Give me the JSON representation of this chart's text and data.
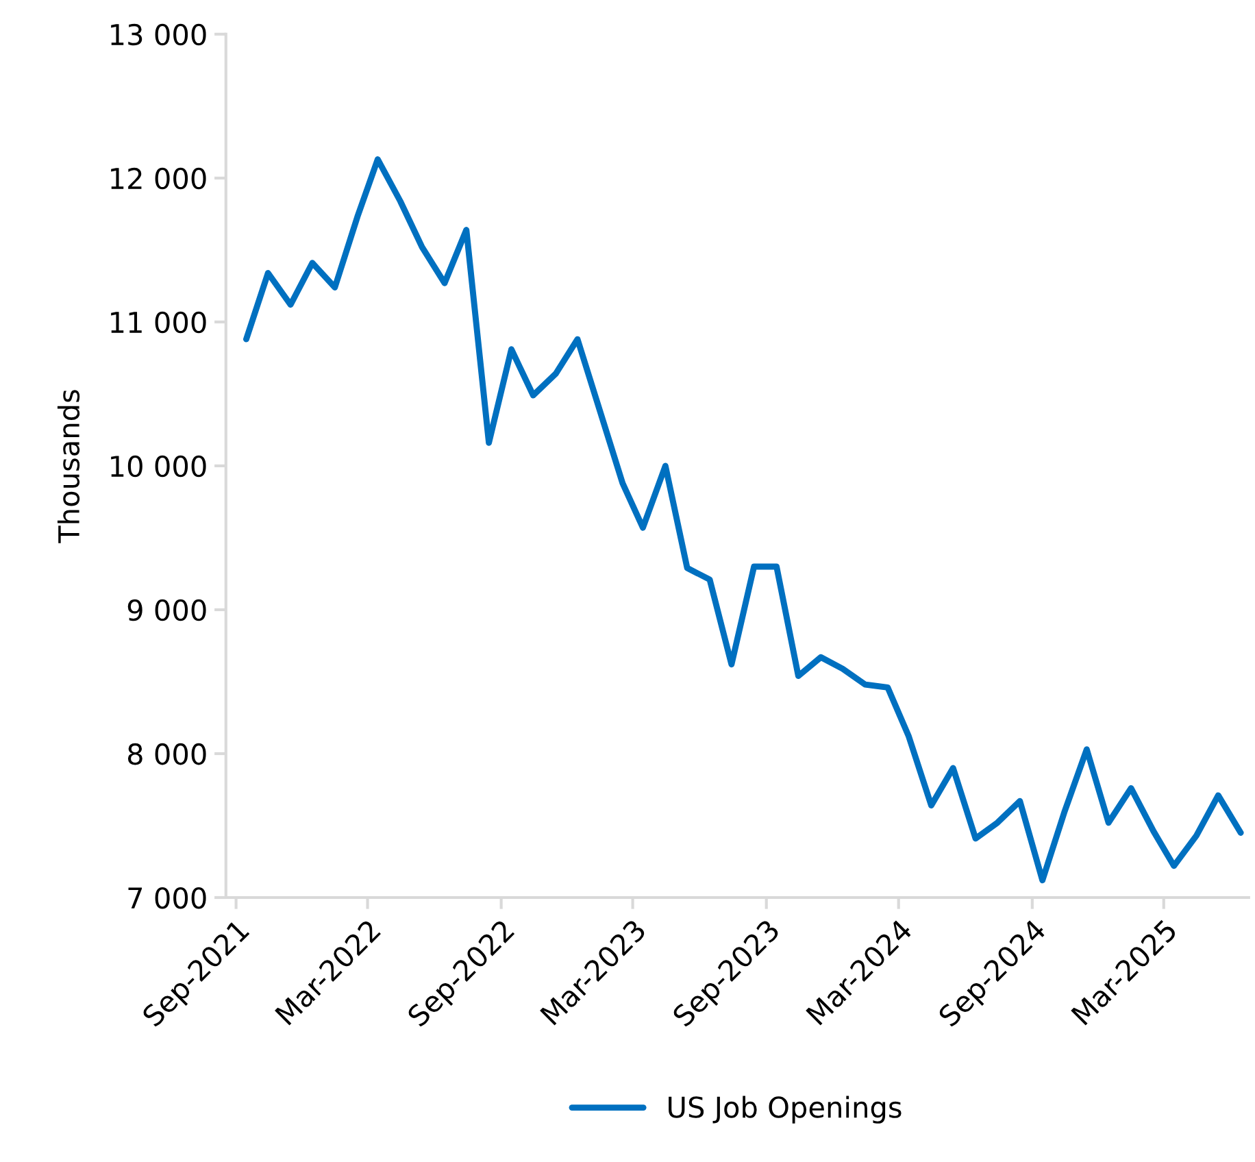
{
  "chart_data": {
    "type": "line",
    "ylabel": "Thousands",
    "x": [
      "2021-09-15",
      "2021-10-15",
      "2021-11-15",
      "2021-12-15",
      "2022-01-15",
      "2022-02-15",
      "2022-03-15",
      "2022-04-15",
      "2022-05-15",
      "2022-06-15",
      "2022-07-15",
      "2022-08-15",
      "2022-09-15",
      "2022-10-15",
      "2022-11-15",
      "2022-12-15",
      "2023-01-15",
      "2023-02-15",
      "2023-03-15",
      "2023-04-15",
      "2023-05-15",
      "2023-06-15",
      "2023-07-15",
      "2023-08-15",
      "2023-09-15",
      "2023-10-15",
      "2023-11-15",
      "2023-12-15",
      "2024-01-15",
      "2024-02-15",
      "2024-03-15",
      "2024-04-15",
      "2024-05-15",
      "2024-06-15",
      "2024-07-15",
      "2024-08-15",
      "2024-09-15",
      "2024-10-15",
      "2024-11-15",
      "2024-12-15",
      "2025-01-15",
      "2025-02-15",
      "2025-03-15",
      "2025-04-15",
      "2025-05-15",
      "2025-06-15"
    ],
    "series": [
      {
        "name": "US Job Openings",
        "color": "#0070c0",
        "values": [
          10880,
          11340,
          11120,
          11410,
          11240,
          11730,
          12130,
          11840,
          11520,
          11270,
          11640,
          10160,
          10810,
          10490,
          10640,
          10880,
          10380,
          9880,
          9570,
          10000,
          9290,
          9210,
          8620,
          9300,
          9300,
          8540,
          8670,
          8590,
          8480,
          8460,
          8120,
          7640,
          7900,
          7410,
          7520,
          7670,
          7120,
          7590,
          8030,
          7520,
          7760,
          7460,
          7220,
          7430,
          7710,
          7450
        ]
      }
    ],
    "xlim": [
      "2021-08-18",
      "2025-06-26"
    ],
    "xticks": [
      {
        "value": "2021-09-01",
        "label": "Sep-2021"
      },
      {
        "value": "2022-03-01",
        "label": "Mar-2022"
      },
      {
        "value": "2022-09-01",
        "label": "Sep-2022"
      },
      {
        "value": "2023-03-01",
        "label": "Mar-2023"
      },
      {
        "value": "2023-09-01",
        "label": "Sep-2023"
      },
      {
        "value": "2024-03-01",
        "label": "Mar-2024"
      },
      {
        "value": "2024-09-01",
        "label": "Sep-2024"
      },
      {
        "value": "2025-03-01",
        "label": "Mar-2025"
      }
    ],
    "ylim": [
      7000,
      13000
    ],
    "yticks": [
      {
        "value": 7000,
        "label": "7 000"
      },
      {
        "value": 8000,
        "label": "8 000"
      },
      {
        "value": 9000,
        "label": "9 000"
      },
      {
        "value": 10000,
        "label": "10 000"
      },
      {
        "value": 11000,
        "label": "11 000"
      },
      {
        "value": 12000,
        "label": "12 000"
      },
      {
        "value": 13000,
        "label": "13 000"
      }
    ],
    "legend": "bottom",
    "grid": false,
    "marker": "none",
    "line_style": "solid"
  }
}
